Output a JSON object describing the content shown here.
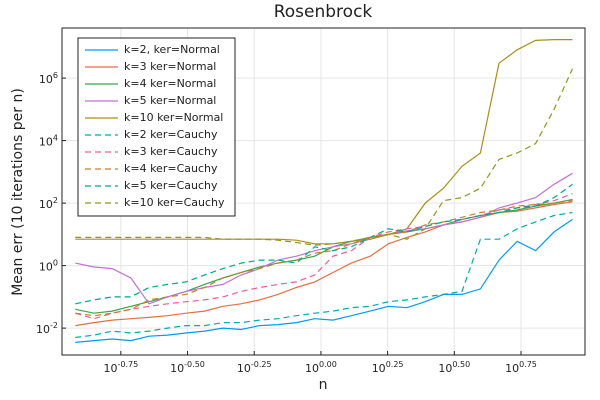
{
  "chart_data": {
    "type": "line",
    "title": "Rosenbrock",
    "x_label": "n",
    "y_label": "Mean err (10 iterations per n)",
    "x_scale": "log",
    "y_scale": "log",
    "grid": true,
    "legend": "top-left",
    "xlim": [
      0.107,
      9.77
    ],
    "ylim": [
      0.00138,
      40000000
    ],
    "xticks": [
      {
        "value": 0.1778,
        "label": "10^-0.75"
      },
      {
        "value": 0.3162,
        "label": "10^-0.50"
      },
      {
        "value": 0.5623,
        "label": "10^-0.25"
      },
      {
        "value": 1,
        "label": "10^0.00"
      },
      {
        "value": 1.778,
        "label": "10^0.25"
      },
      {
        "value": 3.162,
        "label": "10^0.50"
      },
      {
        "value": 5.623,
        "label": "10^0.75"
      }
    ],
    "yticks": [
      {
        "value": 0.01,
        "label": "10^-2"
      },
      {
        "value": 1,
        "label": "10^0"
      },
      {
        "value": 100,
        "label": "10^2"
      },
      {
        "value": 10000,
        "label": "10^4"
      },
      {
        "value": 1000000,
        "label": "10^6"
      }
    ],
    "x": [
      0.12,
      0.141,
      0.165,
      0.194,
      0.227,
      0.266,
      0.312,
      0.366,
      0.429,
      0.502,
      0.589,
      0.69,
      0.809,
      0.948,
      1.11,
      1.3,
      1.53,
      1.79,
      2.1,
      2.46,
      2.88,
      3.38,
      3.96,
      4.65,
      5.44,
      6.38,
      7.48,
      8.77
    ],
    "series": [
      {
        "name": "k=2, ker=Normal",
        "color": "#009af9",
        "style": "solid",
        "values": [
          0.0035,
          0.004,
          0.0045,
          0.004,
          0.0055,
          0.006,
          0.007,
          0.008,
          0.01,
          0.009,
          0.012,
          0.013,
          0.015,
          0.02,
          0.018,
          0.025,
          0.035,
          0.05,
          0.045,
          0.07,
          0.12,
          0.12,
          0.18,
          1.5,
          6,
          3,
          12,
          30
        ]
      },
      {
        "name": "k=3 ker=Normal",
        "color": "#e26f46",
        "style": "solid",
        "values": [
          0.012,
          0.015,
          0.018,
          0.02,
          0.022,
          0.025,
          0.03,
          0.035,
          0.05,
          0.06,
          0.08,
          0.12,
          0.2,
          0.3,
          0.6,
          1.2,
          2,
          5,
          8,
          12,
          20,
          25,
          35,
          50,
          55,
          70,
          90,
          110
        ]
      },
      {
        "name": "k=4 ker=Normal",
        "color": "#3da44d",
        "style": "solid",
        "values": [
          0.04,
          0.03,
          0.035,
          0.05,
          0.07,
          0.1,
          0.15,
          0.25,
          0.4,
          0.6,
          0.9,
          1.2,
          1.5,
          2,
          4,
          6,
          8,
          10,
          12,
          15,
          20,
          30,
          40,
          50,
          60,
          80,
          100,
          130
        ]
      },
      {
        "name": "k=5 ker=Normal",
        "color": "#c271d2",
        "style": "solid",
        "values": [
          1.2,
          0.9,
          0.8,
          0.4,
          0.06,
          0.1,
          0.15,
          0.2,
          0.25,
          0.5,
          0.8,
          1.5,
          2,
          3,
          4,
          5,
          7,
          10,
          13,
          15,
          20,
          25,
          35,
          70,
          100,
          150,
          400,
          900
        ]
      },
      {
        "name": "k=10 ker=Normal",
        "color": "#ac8d18",
        "style": "solid",
        "values": [
          7,
          7,
          7,
          7,
          7,
          7,
          7,
          7,
          7,
          7,
          7,
          7,
          6.5,
          5,
          5,
          6,
          7,
          10,
          15,
          100,
          300,
          1500,
          4000,
          3000000,
          8000000,
          16000000,
          17000000,
          17000000
        ]
      },
      {
        "name": "k=2 ker=Cauchy",
        "color": "#00a9ad",
        "style": "dashed",
        "values": [
          0.005,
          0.006,
          0.008,
          0.007,
          0.008,
          0.01,
          0.012,
          0.012,
          0.015,
          0.015,
          0.018,
          0.02,
          0.025,
          0.03,
          0.035,
          0.045,
          0.05,
          0.07,
          0.08,
          0.1,
          0.12,
          0.15,
          7,
          7,
          15,
          25,
          40,
          50
        ]
      },
      {
        "name": "k=3 ker=Cauchy",
        "color": "#ed5d92",
        "style": "dashed",
        "values": [
          0.03,
          0.02,
          0.03,
          0.04,
          0.05,
          0.06,
          0.07,
          0.08,
          0.1,
          0.15,
          0.2,
          0.25,
          0.3,
          0.5,
          2,
          3,
          8,
          12,
          15,
          18,
          25,
          30,
          40,
          60,
          70,
          90,
          120,
          200
        ]
      },
      {
        "name": "k=4 ker=Cauchy",
        "color": "#c68125",
        "style": "dashed",
        "values": [
          0.03,
          0.025,
          0.03,
          0.04,
          0.08,
          0.1,
          0.12,
          0.2,
          0.4,
          0.6,
          0.8,
          1.2,
          1.5,
          2.5,
          3,
          5,
          8,
          10,
          12,
          20,
          25,
          35,
          50,
          60,
          80,
          90,
          100,
          120
        ]
      },
      {
        "name": "k=5 ker=Cauchy",
        "color": "#00a98d",
        "style": "dashed",
        "values": [
          0.06,
          0.08,
          0.1,
          0.1,
          0.2,
          0.25,
          0.3,
          0.5,
          0.8,
          1.2,
          1.5,
          1.5,
          1.2,
          4,
          3,
          4,
          8,
          15,
          12,
          18,
          25,
          30,
          40,
          50,
          70,
          80,
          150,
          400
        ]
      },
      {
        "name": "k=10 ker=Cauchy",
        "color": "#8e971d",
        "style": "dashed",
        "values": [
          8,
          8,
          8,
          8,
          8,
          8,
          8,
          8,
          7,
          7,
          7,
          6.5,
          5.5,
          4.5,
          5,
          6,
          8,
          10,
          7,
          15,
          120,
          150,
          300,
          2500,
          4000,
          8000,
          100000,
          2000000
        ]
      }
    ]
  }
}
